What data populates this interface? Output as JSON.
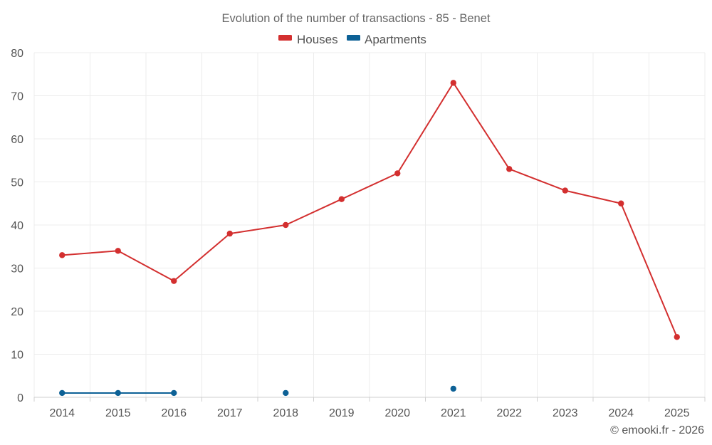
{
  "chart_data": {
    "type": "line",
    "title": "Evolution of the number of transactions - 85 - Benet",
    "categories": [
      "2014",
      "2015",
      "2016",
      "2017",
      "2018",
      "2019",
      "2020",
      "2021",
      "2022",
      "2023",
      "2024",
      "2025"
    ],
    "ylim": [
      0,
      80
    ],
    "yticks": [
      0,
      10,
      20,
      30,
      40,
      50,
      60,
      70,
      80
    ],
    "xlabel": "",
    "ylabel": "",
    "grid": true,
    "legend_position": "top-center",
    "series": [
      {
        "name": "Houses",
        "color": "#d32f2f",
        "values": [
          33,
          34,
          27,
          38,
          40,
          46,
          52,
          73,
          53,
          48,
          45,
          14
        ]
      },
      {
        "name": "Apartments",
        "color": "#0d6196",
        "values": [
          1,
          1,
          1,
          null,
          1,
          null,
          null,
          2,
          null,
          null,
          null,
          null
        ]
      }
    ]
  },
  "credit": "© emooki.fr - 2026"
}
